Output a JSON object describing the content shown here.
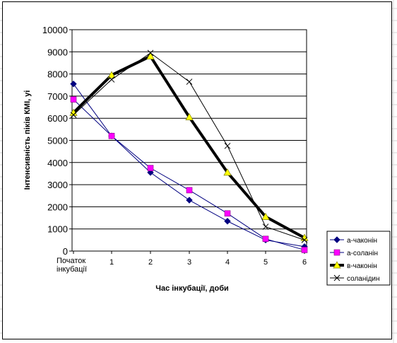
{
  "chart_data": {
    "type": "line",
    "title": "",
    "xlabel": "Час інкубації, доби",
    "ylabel": "Інтенсивність піків КМІ, уі",
    "categories": [
      [
        "Початок",
        "інкубації"
      ],
      [
        "1"
      ],
      [
        "2"
      ],
      [
        "3"
      ],
      [
        "4"
      ],
      [
        "5"
      ],
      [
        "6"
      ]
    ],
    "ylim": [
      0,
      10000
    ],
    "yticks": [
      "0",
      "1000",
      "2000",
      "3000",
      "4000",
      "5000",
      "6000",
      "7000",
      "8000",
      "9000",
      "10000"
    ],
    "grid": "horizontal",
    "legend_position": "right",
    "series": [
      {
        "name": "а-чаконін",
        "color": "#000080",
        "marker": "diamond",
        "width": 1,
        "values": [
          7550,
          5200,
          3550,
          2300,
          1350,
          500,
          200
        ]
      },
      {
        "name": "а-соланін",
        "color": "#ff00ff",
        "marker": "square",
        "width": 1,
        "values": [
          6850,
          5200,
          3750,
          2750,
          1700,
          550,
          50
        ]
      },
      {
        "name": "в-чаконін",
        "color": "#ffff00",
        "marker": "triangle",
        "width": 4,
        "values": [
          6250,
          7950,
          8800,
          6050,
          3550,
          1550,
          600
        ]
      },
      {
        "name": "соланідин",
        "color": "#000000",
        "marker": "x",
        "width": 1,
        "values": [
          6150,
          7750,
          8950,
          7650,
          4750,
          1100,
          500
        ]
      }
    ]
  }
}
